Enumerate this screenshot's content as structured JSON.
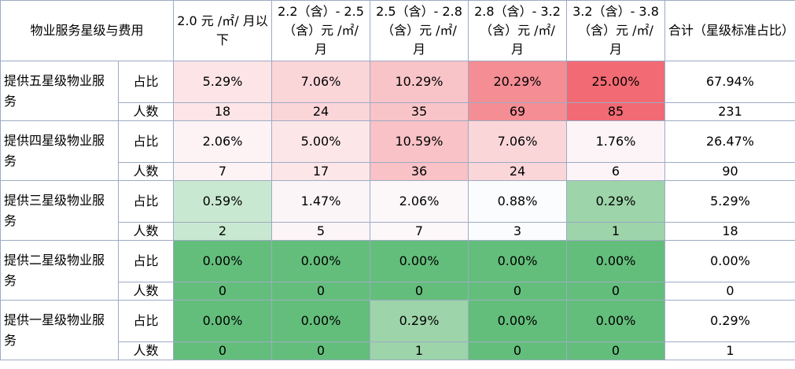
{
  "table": {
    "corner": "物业服务星级与费用",
    "columns": [
      "2.0 元 /㎡/ 月以下",
      "2.2（含）- 2.5 （含）元 /㎡/ 月",
      "2.5（含）- 2.8（含）元 /㎡/ 月",
      "2.8（含）- 3.2 （含）元 /㎡/ 月",
      "3.2（含）- 3.8（含）元 /㎡/ 月",
      "合计（星级标准占比）"
    ],
    "ratio_label": "占比",
    "count_label": "人数",
    "groups": [
      {
        "name": "提供五星级物业服务",
        "ratio": [
          "5.29%",
          "7.06%",
          "10.29%",
          "20.29%",
          "25.00%",
          "67.94%"
        ],
        "count": [
          "18",
          "24",
          "35",
          "69",
          "85",
          "231"
        ],
        "ratio_colors": [
          "#fde4e6",
          "#fbd6d9",
          "#f8c4c8",
          "#f48d94",
          "#f26a73",
          "#ffffff"
        ],
        "count_colors": [
          "#fde4e6",
          "#fbd6d9",
          "#f8c4c8",
          "#f48d94",
          "#f26a73",
          "#ffffff"
        ]
      },
      {
        "name": "提供四星级物业服务",
        "ratio": [
          "2.06%",
          "5.00%",
          "10.59%",
          "7.06%",
          "1.76%",
          "26.47%"
        ],
        "count": [
          "7",
          "17",
          "36",
          "24",
          "6",
          "90"
        ],
        "ratio_colors": [
          "#fdf3f5",
          "#fce6e8",
          "#f8c2c6",
          "#fbd6d9",
          "#fcf4f6",
          "#ffffff"
        ],
        "count_colors": [
          "#fdf3f5",
          "#fce6e8",
          "#f8c2c6",
          "#fbd6d9",
          "#fcf4f6",
          "#ffffff"
        ]
      },
      {
        "name": "提供三星级物业服务",
        "ratio": [
          "0.59%",
          "1.47%",
          "2.06%",
          "0.88%",
          "0.29%",
          "5.29%"
        ],
        "count": [
          "2",
          "5",
          "7",
          "3",
          "1",
          "18"
        ],
        "ratio_colors": [
          "#c9e8d1",
          "#fcf5f7",
          "#fcf7f9",
          "#fbfcfd",
          "#9dd4a9",
          "#ffffff"
        ],
        "count_colors": [
          "#c9e8d1",
          "#fcf5f7",
          "#fcf7f9",
          "#fbfcfd",
          "#9dd4a9",
          "#ffffff"
        ]
      },
      {
        "name": "提供二星级物业服务",
        "ratio": [
          "0.00%",
          "0.00%",
          "0.00%",
          "0.00%",
          "0.00%",
          "0.00%"
        ],
        "count": [
          "0",
          "0",
          "0",
          "0",
          "0",
          "0"
        ],
        "ratio_colors": [
          "#63be7b",
          "#63be7b",
          "#63be7b",
          "#63be7b",
          "#63be7b",
          "#ffffff"
        ],
        "count_colors": [
          "#63be7b",
          "#63be7b",
          "#63be7b",
          "#63be7b",
          "#63be7b",
          "#ffffff"
        ]
      },
      {
        "name": "提供一星级物业服务",
        "ratio": [
          "0.00%",
          "0.00%",
          "0.29%",
          "0.00%",
          "0.00%",
          "0.29%"
        ],
        "count": [
          "0",
          "0",
          "1",
          "0",
          "0",
          "1"
        ],
        "ratio_colors": [
          "#63be7b",
          "#63be7b",
          "#9dd4a9",
          "#63be7b",
          "#63be7b",
          "#ffffff"
        ],
        "count_colors": [
          "#63be7b",
          "#63be7b",
          "#9dd4a9",
          "#63be7b",
          "#63be7b",
          "#ffffff"
        ]
      }
    ]
  }
}
